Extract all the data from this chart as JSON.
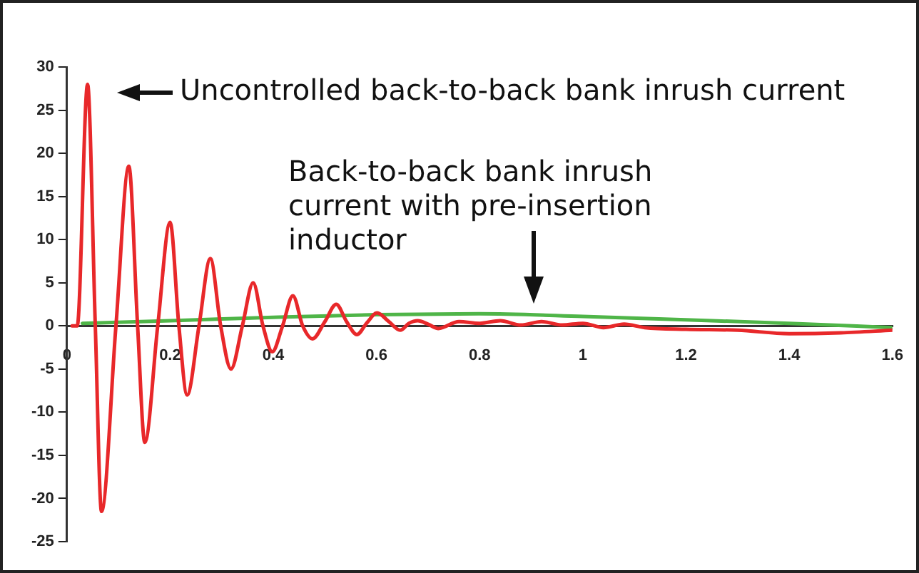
{
  "chart_data": {
    "type": "line",
    "xlim": [
      0,
      1.6
    ],
    "ylim": [
      -25,
      30
    ],
    "xticks": [
      0,
      0.2,
      0.4,
      0.6,
      0.8,
      1,
      1.2,
      1.4,
      1.6
    ],
    "yticks": [
      -25,
      -20,
      -15,
      -10,
      -5,
      0,
      5,
      10,
      15,
      20,
      25,
      30
    ],
    "grid": false,
    "legend": false,
    "marker": "none",
    "line_style": "solid",
    "series": [
      {
        "color": "#e8282a",
        "x": [
          0.01,
          0.02,
          0.04,
          0.055,
          0.067,
          0.095,
          0.12,
          0.137,
          0.151,
          0.176,
          0.2,
          0.217,
          0.233,
          0.256,
          0.278,
          0.298,
          0.318,
          0.34,
          0.361,
          0.38,
          0.398,
          0.418,
          0.438,
          0.457,
          0.476,
          0.5,
          0.522,
          0.542,
          0.562,
          0.582,
          0.601,
          0.624,
          0.646,
          0.663,
          0.68,
          0.7,
          0.72,
          0.76,
          0.8,
          0.84,
          0.88,
          0.92,
          0.96,
          1.0,
          1.04,
          1.08,
          1.12,
          1.2,
          1.3,
          1.4,
          1.5,
          1.6
        ],
        "values": [
          0,
          0,
          28,
          0,
          -21.5,
          0,
          18.5,
          0,
          -13.5,
          0,
          12,
          0,
          -8,
          0,
          7.8,
          0,
          -5,
          0,
          5,
          0,
          -3,
          0,
          3.5,
          0,
          -1.5,
          0.5,
          2.5,
          0.5,
          -1,
          0.4,
          1.5,
          0.5,
          -0.5,
          0.3,
          0.6,
          0.2,
          -0.3,
          0.5,
          0.3,
          0.6,
          0.1,
          0.5,
          0.1,
          0.3,
          -0.2,
          0.2,
          -0.2,
          -0.4,
          -0.5,
          -0.9,
          -0.8,
          -0.5
        ]
      },
      {
        "color": "#4fb548",
        "x": [
          0.03,
          0.2,
          0.4,
          0.6,
          0.8,
          1.0,
          1.2,
          1.4,
          1.6
        ],
        "values": [
          0.3,
          0.6,
          1.0,
          1.3,
          1.4,
          1.1,
          0.7,
          0.3,
          -0.2
        ]
      }
    ],
    "annotations": [
      "Uncontrolled back-to-back bank inrush current",
      "Back-to-back bank inrush current with pre-insertion inductor"
    ]
  }
}
